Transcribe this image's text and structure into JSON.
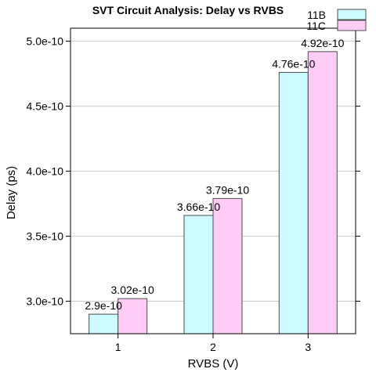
{
  "chart_data": {
    "type": "bar",
    "title": "SVT Circuit Analysis: Delay vs RVBS",
    "xlabel": "RVBS (V)",
    "ylabel": "Delay (ps)",
    "categories": [
      "1",
      "2",
      "3"
    ],
    "series": [
      {
        "name": "11B",
        "values": [
          2.9e-10,
          3.66e-10,
          4.76e-10
        ],
        "labels": [
          "2.9e-10",
          "3.66e-10",
          "4.76e-10"
        ],
        "color": "#ccfaff"
      },
      {
        "name": "11C",
        "values": [
          3.02e-10,
          3.79e-10,
          4.92e-10
        ],
        "labels": [
          "3.02e-10",
          "3.79e-10",
          "4.92e-10"
        ],
        "color": "#ffccf5"
      }
    ],
    "ylim": [
      2.75e-10,
      5.1e-10
    ],
    "yticks": [
      3e-10,
      3.5e-10,
      4e-10,
      4.5e-10,
      5e-10
    ],
    "ytick_labels": [
      "3.0e-10",
      "3.5e-10",
      "4.0e-10",
      "4.5e-10",
      "5.0e-10"
    ],
    "grid": "horizontal",
    "legend_position": "top-right",
    "bar_outline_color": "#4d4d4d",
    "grid_color": "#cccccc"
  }
}
